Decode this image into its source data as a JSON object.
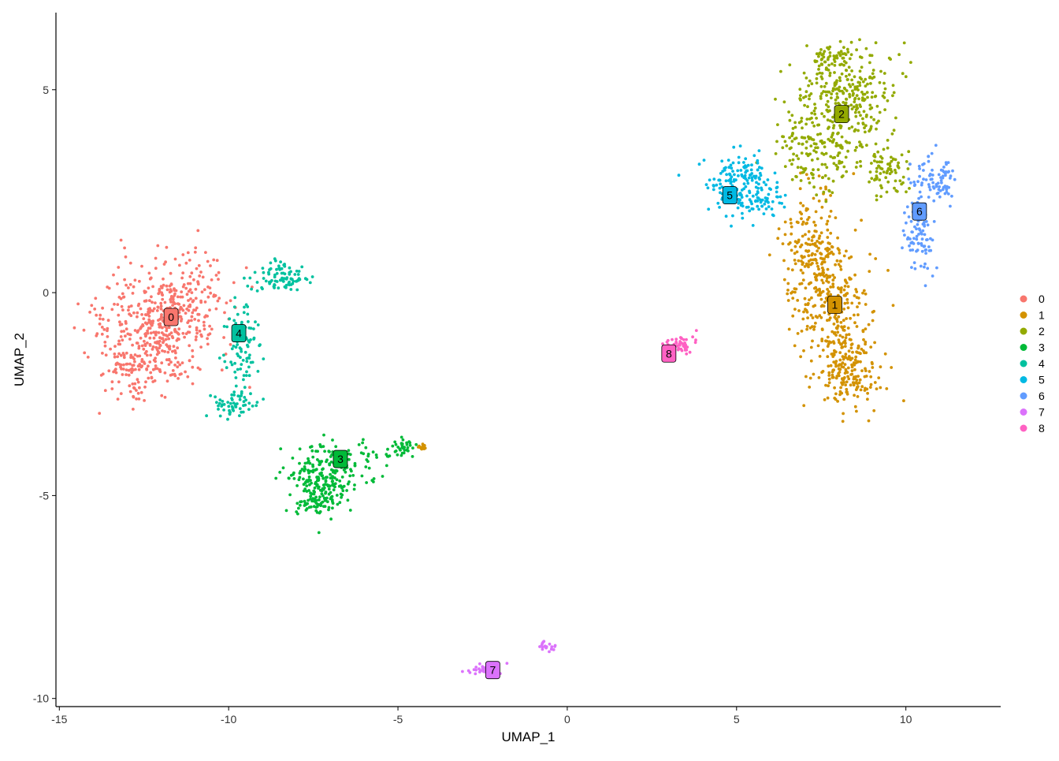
{
  "chart_data": {
    "type": "scatter",
    "title": "",
    "xlabel": "UMAP_1",
    "ylabel": "UMAP_2",
    "xlim": [
      -15.1,
      12.8
    ],
    "ylim": [
      -10.2,
      6.9
    ],
    "xticks": [
      -15,
      -10,
      -5,
      0,
      5,
      10
    ],
    "yticks": [
      5,
      0,
      -5,
      -10
    ],
    "grid": false,
    "legend_position": "right",
    "point_size": 1.9,
    "clusters": [
      {
        "name": "0",
        "color": "#F8766D",
        "center": [
          -11.7,
          -0.6
        ],
        "label_pos": [
          -11.7,
          -0.6
        ],
        "n": 600,
        "seed": 11,
        "blobs": [
          {
            "cx": -12.4,
            "cy": -0.9,
            "sx": 0.85,
            "sy": 0.75,
            "w": 0.55
          },
          {
            "cx": -11.4,
            "cy": -0.3,
            "sx": 0.75,
            "sy": 0.65,
            "w": 0.35
          },
          {
            "cx": -12.6,
            "cy": -1.9,
            "sx": 0.55,
            "sy": 0.35,
            "w": 0.1
          }
        ]
      },
      {
        "name": "1",
        "color": "#D39200",
        "center": [
          7.9,
          -0.3
        ],
        "label_pos": [
          7.9,
          -0.3
        ],
        "n": 620,
        "seed": 23,
        "blobs": [
          {
            "cx": 7.3,
            "cy": 1.0,
            "sx": 0.45,
            "sy": 0.75,
            "w": 0.3
          },
          {
            "cx": 7.9,
            "cy": -0.6,
            "sx": 0.55,
            "sy": 0.75,
            "w": 0.35
          },
          {
            "cx": 8.4,
            "cy": -2.1,
            "sx": 0.45,
            "sy": 0.4,
            "w": 0.25
          },
          {
            "cx": -4.3,
            "cy": -3.8,
            "sx": 0.07,
            "sy": 0.05,
            "w": 0.015
          }
        ]
      },
      {
        "name": "2",
        "color": "#93AA00",
        "center": [
          8.1,
          4.4
        ],
        "label_pos": [
          8.1,
          4.4
        ],
        "n": 560,
        "seed": 37,
        "blobs": [
          {
            "cx": 8.2,
            "cy": 5.0,
            "sx": 0.8,
            "sy": 0.5,
            "w": 0.5
          },
          {
            "cx": 7.5,
            "cy": 3.5,
            "sx": 0.65,
            "sy": 0.5,
            "w": 0.3
          },
          {
            "cx": 9.4,
            "cy": 3.0,
            "sx": 0.35,
            "sy": 0.3,
            "w": 0.12
          },
          {
            "cx": 8.0,
            "cy": 5.8,
            "sx": 0.45,
            "sy": 0.15,
            "w": 0.08
          }
        ]
      },
      {
        "name": "3",
        "color": "#00BA38",
        "center": [
          -6.7,
          -4.1
        ],
        "label_pos": [
          -6.7,
          -4.1
        ],
        "n": 330,
        "seed": 41,
        "blobs": [
          {
            "cx": -7.2,
            "cy": -4.6,
            "sx": 0.55,
            "sy": 0.45,
            "w": 0.7
          },
          {
            "cx": -7.5,
            "cy": -5.2,
            "sx": 0.3,
            "sy": 0.12,
            "w": 0.12
          },
          {
            "cx": -4.9,
            "cy": -3.8,
            "sx": 0.22,
            "sy": 0.12,
            "w": 0.1
          },
          {
            "cx": -5.8,
            "cy": -4.1,
            "sx": 0.35,
            "sy": 0.25,
            "w": 0.08
          }
        ]
      },
      {
        "name": "4",
        "color": "#00C19F",
        "center": [
          -9.7,
          -1.0
        ],
        "label_pos": [
          -9.7,
          -1.0
        ],
        "n": 230,
        "seed": 53,
        "blobs": [
          {
            "cx": -8.5,
            "cy": 0.4,
            "sx": 0.45,
            "sy": 0.2,
            "w": 0.35
          },
          {
            "cx": -9.6,
            "cy": -1.3,
            "sx": 0.25,
            "sy": 0.6,
            "w": 0.35
          },
          {
            "cx": -9.8,
            "cy": -2.8,
            "sx": 0.3,
            "sy": 0.2,
            "w": 0.3
          }
        ]
      },
      {
        "name": "5",
        "color": "#00B9E3",
        "center": [
          4.8,
          2.4
        ],
        "label_pos": [
          4.8,
          2.4
        ],
        "n": 200,
        "seed": 61,
        "blobs": [
          {
            "cx": 5.1,
            "cy": 2.7,
            "sx": 0.45,
            "sy": 0.4,
            "w": 0.75
          },
          {
            "cx": 5.7,
            "cy": 2.3,
            "sx": 0.4,
            "sy": 0.25,
            "w": 0.25
          }
        ]
      },
      {
        "name": "6",
        "color": "#619CFF",
        "center": [
          10.4,
          2.0
        ],
        "label_pos": [
          10.4,
          2.0
        ],
        "n": 170,
        "seed": 71,
        "blobs": [
          {
            "cx": 10.9,
            "cy": 2.8,
            "sx": 0.3,
            "sy": 0.3,
            "w": 0.45
          },
          {
            "cx": 10.4,
            "cy": 1.5,
            "sx": 0.25,
            "sy": 0.55,
            "w": 0.55
          }
        ]
      },
      {
        "name": "7",
        "color": "#DB72FB",
        "center": [
          -2.2,
          -9.3
        ],
        "label_pos": [
          -2.2,
          -9.3
        ],
        "n": 55,
        "seed": 83,
        "blobs": [
          {
            "cx": -2.4,
            "cy": -9.3,
            "sx": 0.25,
            "sy": 0.07,
            "w": 0.65
          },
          {
            "cx": -0.6,
            "cy": -8.7,
            "sx": 0.15,
            "sy": 0.08,
            "w": 0.35
          }
        ]
      },
      {
        "name": "8",
        "color": "#FF61C3",
        "center": [
          3.0,
          -1.5
        ],
        "label_pos": [
          3.0,
          -1.5
        ],
        "n": 50,
        "seed": 97,
        "blobs": [
          {
            "cx": 3.3,
            "cy": -1.3,
            "sx": 0.25,
            "sy": 0.12,
            "w": 1.0
          }
        ]
      }
    ]
  }
}
